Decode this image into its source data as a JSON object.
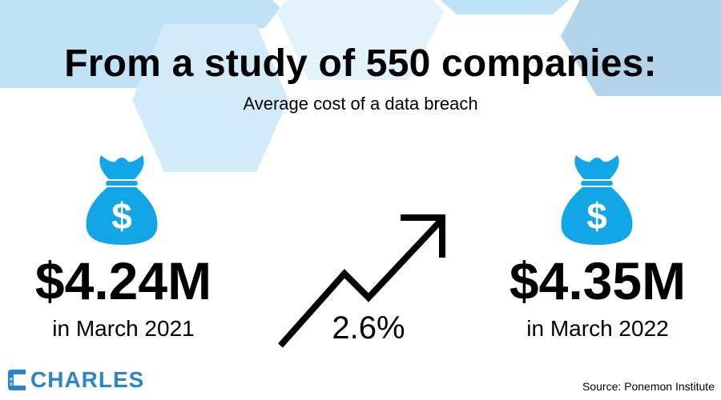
{
  "title": "From a study of 550 companies:",
  "subtitle": "Average cost of a data breach",
  "left": {
    "amount": "$4.24M",
    "date": "in March 2021",
    "icon": "money-bag-icon"
  },
  "right": {
    "amount": "$4.35M",
    "date": "in March 2022",
    "icon": "money-bag-icon"
  },
  "change": {
    "percent": "2.6%",
    "icon": "trend-up-arrow-icon"
  },
  "logo": {
    "text": "CHARLES",
    "mark_icon": "charles-logo-icon"
  },
  "source": "Source: Ponemon Institute",
  "colors": {
    "accent_blue": "#12a6e6",
    "hex_light": "#d9eefb",
    "hex_mid": "#bfe2f6",
    "hex_dark": "#b2d4ea",
    "logo_blue": "#2a86c9",
    "text": "#000000"
  }
}
